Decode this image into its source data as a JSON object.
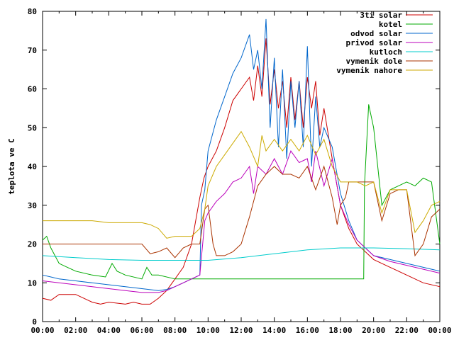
{
  "chart_data": {
    "type": "line",
    "ylabel": "teplota ve C",
    "xlabel": "",
    "ylim": [
      0,
      80
    ],
    "xlim": [
      0,
      24
    ],
    "yticks": [
      0,
      10,
      20,
      30,
      40,
      50,
      60,
      70,
      80
    ],
    "xticks": [
      "00:00",
      "02:00",
      "04:00",
      "06:00",
      "08:00",
      "10:00",
      "12:00",
      "14:00",
      "16:00",
      "18:00",
      "20:00",
      "22:00",
      "00:00"
    ],
    "legend_position": "top-right",
    "grid": false,
    "series": [
      {
        "name": "3ti solar",
        "color": "#cc0000",
        "x": [
          0,
          0.5,
          1,
          2,
          3,
          3.5,
          4,
          5,
          5.5,
          6,
          6.5,
          7,
          7.5,
          8,
          8.5,
          9,
          9.5,
          9.75,
          10,
          10.5,
          11,
          11.5,
          12,
          12.5,
          12.75,
          13,
          13.25,
          13.5,
          13.75,
          14,
          14.25,
          14.5,
          14.75,
          15,
          15.25,
          15.5,
          15.75,
          16,
          16.25,
          16.5,
          16.75,
          17,
          17.5,
          18,
          18.5,
          19,
          19.5,
          20,
          21,
          22,
          23,
          24
        ],
        "y": [
          6,
          5.5,
          7,
          7,
          5,
          4.5,
          5,
          4.5,
          5,
          4.5,
          4.5,
          6,
          8,
          11,
          14,
          20,
          32,
          37,
          40,
          44,
          50,
          57,
          60,
          63,
          57,
          66,
          58,
          73,
          56,
          65,
          55,
          62,
          50,
          63,
          52,
          62,
          50,
          63,
          55,
          62,
          48,
          55,
          42,
          30,
          24,
          20,
          18,
          16,
          14,
          12,
          10,
          9
        ]
      },
      {
        "name": "kotel",
        "color": "#00aa00",
        "x": [
          0,
          0.25,
          0.5,
          1,
          1.5,
          2,
          3,
          3.8,
          4.2,
          4.5,
          5,
          6,
          6.3,
          6.6,
          7,
          8,
          9,
          9.5,
          10,
          12,
          14,
          16,
          18,
          19.4,
          19.45,
          19.7,
          20,
          20.5,
          21,
          21.5,
          22,
          22.5,
          23,
          23.5,
          24
        ],
        "y": [
          21,
          22,
          19,
          15,
          14,
          13,
          12,
          11.5,
          15,
          13,
          12,
          11,
          14,
          12,
          12,
          11,
          11,
          11,
          11,
          11,
          11,
          11,
          11,
          11,
          35,
          56,
          50,
          30,
          34,
          35,
          36,
          35,
          37,
          36,
          20
        ]
      },
      {
        "name": "odvod solar",
        "color": "#0066cc",
        "x": [
          0,
          0.5,
          1,
          2,
          3,
          4,
          5,
          6,
          7,
          7.5,
          8,
          8.5,
          9,
          9.5,
          9.6,
          9.8,
          10,
          10.5,
          11,
          11.5,
          12,
          12.5,
          12.75,
          13,
          13.25,
          13.5,
          13.75,
          14,
          14.25,
          14.5,
          14.75,
          15,
          15.25,
          15.5,
          15.75,
          16,
          16.25,
          16.5,
          16.75,
          17,
          17.5,
          18,
          18.5,
          19,
          19.5,
          20,
          21,
          22,
          23,
          24
        ],
        "y": [
          12,
          11.5,
          11,
          10.5,
          10,
          9.5,
          9,
          8.5,
          8,
          8.3,
          9,
          10,
          11,
          12,
          30,
          34,
          44,
          52,
          58,
          64,
          68,
          74,
          65,
          70,
          60,
          78,
          50,
          68,
          45,
          65,
          42,
          62,
          50,
          62,
          45,
          71,
          40,
          58,
          45,
          50,
          45,
          33,
          26,
          21,
          19,
          17,
          16,
          15,
          14,
          13
        ]
      },
      {
        "name": "privod solar",
        "color": "#bb00bb",
        "x": [
          0,
          1,
          2,
          3,
          4,
          5,
          6,
          7,
          7.5,
          8,
          8.5,
          9,
          9.5,
          9.8,
          10,
          10.5,
          11,
          11.5,
          12,
          12.5,
          12.75,
          13,
          13.5,
          14,
          14.5,
          15,
          15.5,
          16,
          16.25,
          16.5,
          17,
          17.5,
          18,
          18.5,
          19,
          19.5,
          20,
          21,
          22,
          23,
          24
        ],
        "y": [
          10.5,
          10,
          9.5,
          9,
          8.5,
          8,
          7.5,
          7.5,
          8,
          9,
          10,
          11,
          12,
          26,
          28,
          31,
          33,
          36,
          37,
          40,
          33,
          40,
          38,
          42,
          38,
          44,
          41,
          42,
          36,
          44,
          35,
          42,
          30,
          25,
          21,
          19,
          17,
          15.5,
          14.5,
          13.5,
          12.5
        ]
      },
      {
        "name": "kutloch",
        "color": "#00cccc",
        "x": [
          0,
          2,
          4,
          6,
          8,
          10,
          12,
          14,
          16,
          18,
          20,
          22,
          24
        ],
        "y": [
          17,
          16.5,
          16,
          15.8,
          15.8,
          15.8,
          16.5,
          17.5,
          18.5,
          19,
          19,
          18.8,
          18.5
        ]
      },
      {
        "name": "vymenik dole",
        "color": "#aa3300",
        "x": [
          0,
          1,
          2,
          3,
          4,
          5,
          6,
          6.5,
          7,
          7.5,
          8,
          8.5,
          9,
          9.5,
          9.8,
          10,
          10.3,
          10.5,
          11,
          11.5,
          12,
          12.5,
          13,
          13.5,
          14,
          14.5,
          15,
          15.5,
          16,
          16.5,
          17,
          17.5,
          17.8,
          18,
          18.3,
          18.5,
          19,
          19.5,
          20,
          20.5,
          21,
          21.5,
          22,
          22.5,
          23,
          23.5,
          24
        ],
        "y": [
          20,
          20,
          20,
          20,
          20,
          20,
          20,
          17.5,
          18,
          19,
          16.5,
          19,
          20,
          20,
          29,
          30,
          20,
          17,
          17,
          18,
          20,
          27,
          35,
          38,
          40,
          38,
          38,
          37,
          40,
          34,
          40,
          32,
          25,
          30,
          32,
          36,
          36,
          36,
          36,
          26,
          33,
          34,
          34,
          17,
          20,
          27,
          29
        ]
      },
      {
        "name": "vymenik nahore",
        "color": "#ccaa00",
        "x": [
          0,
          1,
          2,
          3,
          4,
          5,
          6,
          6.5,
          7,
          7.5,
          8,
          8.5,
          9,
          9.5,
          9.8,
          10,
          10.5,
          11,
          11.5,
          12,
          12.5,
          13,
          13.25,
          13.5,
          14,
          14.5,
          15,
          15.5,
          16,
          16.5,
          17,
          17.5,
          18,
          18.5,
          19,
          19.5,
          20,
          20.5,
          21,
          21.5,
          22,
          22.5,
          23,
          23.5,
          24
        ],
        "y": [
          26,
          26,
          26,
          26,
          25.5,
          25.5,
          25.5,
          25,
          24,
          21.5,
          22,
          22,
          22,
          24,
          29,
          35,
          40,
          43,
          46,
          49,
          45,
          40,
          48,
          44,
          47,
          44,
          47,
          44,
          48,
          43,
          47,
          40,
          36,
          36,
          36,
          35,
          36,
          28,
          34,
          34,
          34,
          23,
          26,
          30,
          31
        ]
      }
    ]
  }
}
